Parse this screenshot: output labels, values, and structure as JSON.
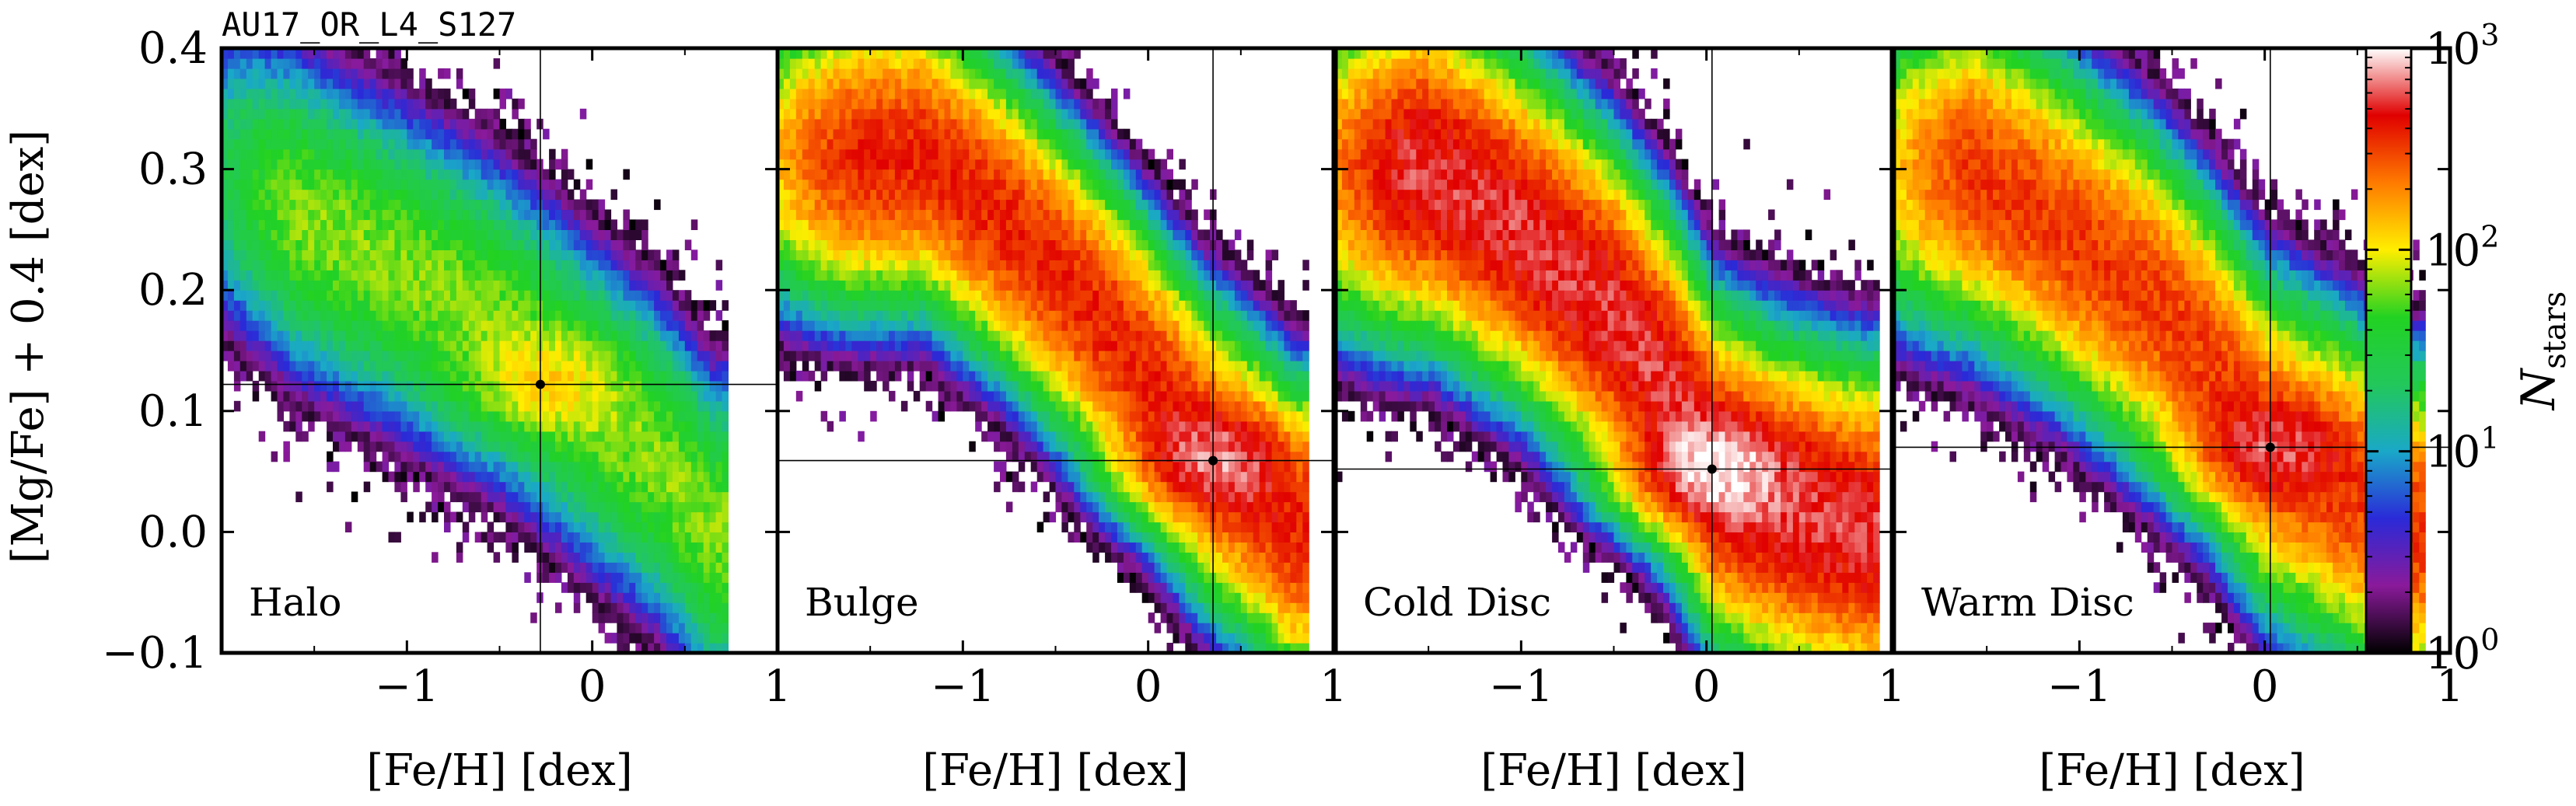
{
  "figure": {
    "id_label": "AU17_OR_L4_S127",
    "ylabel": "[Mg/Fe] + 0.4 [dex]",
    "colorbar_label_main": "N",
    "colorbar_label_sub": "stars"
  },
  "chart_data": {
    "type": "heatmap",
    "xlim": [
      -2,
      1
    ],
    "ylim": [
      -0.1,
      0.4
    ],
    "xlabel": "[Fe/H] [dex]",
    "x_ticks": [
      -1,
      0,
      1
    ],
    "x_tick_labels": [
      "−1",
      "0",
      "1"
    ],
    "y_ticks": [
      -0.1,
      0.0,
      0.1,
      0.2,
      0.3,
      0.4
    ],
    "y_tick_labels": [
      "−0.1",
      "0.0",
      "0.1",
      "0.2",
      "0.3",
      "0.4"
    ],
    "color_scale": {
      "scale": "log",
      "range": [
        1,
        1000
      ],
      "ticks": [
        1,
        10,
        100,
        1000
      ],
      "tick_base": "10",
      "tick_exponents": [
        "0",
        "1",
        "2",
        "3"
      ],
      "colormap": [
        "#000000",
        "#8a1a9a",
        "#2a2ad8",
        "#1aa8c8",
        "#22c85a",
        "#22d222",
        "#ffee00",
        "#ff7a00",
        "#e00000",
        "#ffffff"
      ]
    },
    "panels": [
      {
        "name": "Halo",
        "median": [
          -0.28,
          0.122
        ],
        "ridge": [
          [
            -1.9,
            0.29
          ],
          [
            -1.5,
            0.255
          ],
          [
            -1.0,
            0.215
          ],
          [
            -0.5,
            0.17
          ],
          [
            0.0,
            0.105
          ],
          [
            0.35,
            0.06
          ],
          [
            0.65,
            0.0
          ]
        ],
        "width": 0.12,
        "density_peak": 120
      },
      {
        "name": "Bulge",
        "median": [
          0.35,
          0.059
        ],
        "ridge": [
          [
            -1.2,
            0.31
          ],
          [
            -0.8,
            0.26
          ],
          [
            -0.4,
            0.2
          ],
          [
            0.0,
            0.13
          ],
          [
            0.3,
            0.07
          ],
          [
            0.6,
            0.03
          ],
          [
            0.78,
            0.0
          ]
        ],
        "width": 0.11,
        "density_peak": 700
      },
      {
        "name": "Cold Disc",
        "median": [
          0.03,
          0.052
        ],
        "ridge": [
          [
            -1.5,
            0.3
          ],
          [
            -1.0,
            0.25
          ],
          [
            -0.5,
            0.18
          ],
          [
            -0.2,
            0.12
          ],
          [
            0.05,
            0.05
          ],
          [
            0.4,
            0.02
          ],
          [
            0.85,
            0.0
          ]
        ],
        "width": 0.12,
        "density_peak": 1000
      },
      {
        "name": "Warm Disc",
        "median": [
          0.03,
          0.07
        ],
        "ridge": [
          [
            -1.6,
            0.3
          ],
          [
            -1.1,
            0.25
          ],
          [
            -0.6,
            0.19
          ],
          [
            -0.3,
            0.14
          ],
          [
            0.0,
            0.075
          ],
          [
            0.4,
            0.04
          ],
          [
            0.8,
            0.0
          ]
        ],
        "width": 0.12,
        "density_peak": 600
      }
    ]
  }
}
